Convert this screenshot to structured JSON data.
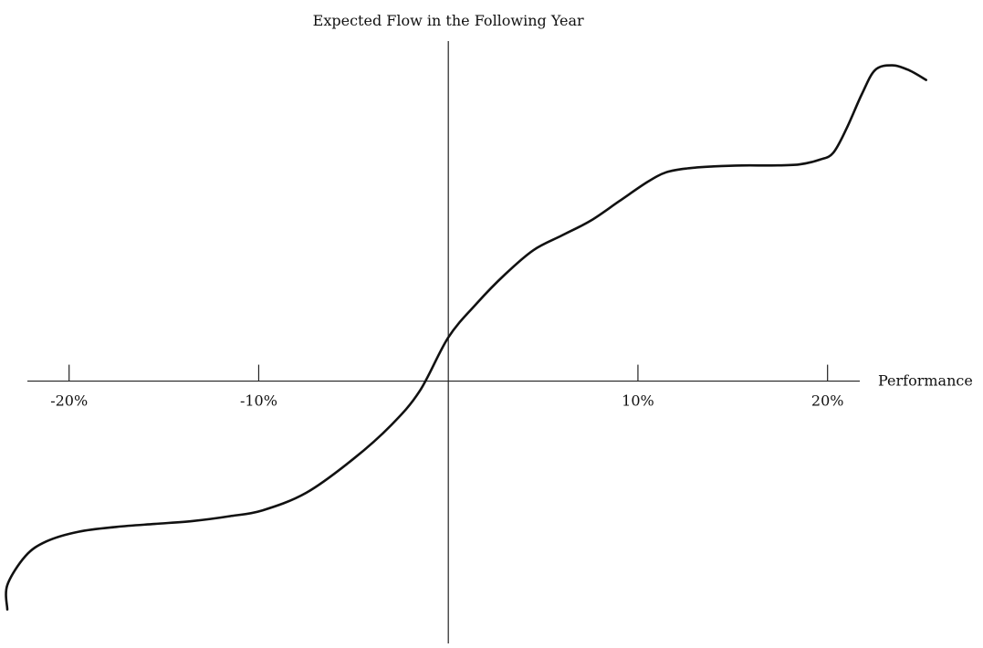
{
  "chart_data": {
    "type": "line",
    "title": "",
    "xlabel": "Performance",
    "ylabel": "Expected Flow in the Following Year",
    "x_tick_labels": [
      {
        "value": -20,
        "label": "-20%"
      },
      {
        "value": -10,
        "label": "-10%"
      },
      {
        "value": 10,
        "label": "10%"
      },
      {
        "value": 20,
        "label": "20%"
      }
    ],
    "xlim": [
      -22.2,
      21.7
    ],
    "ylim": [
      -27,
      35
    ],
    "grid": false,
    "series": [
      {
        "values_x": [
          -24.2,
          -23.5,
          -22.3,
          -21.2,
          -19.5,
          -17.5,
          -15.5,
          -13.5,
          -11.5,
          -9.8,
          -7.5,
          -5,
          -3,
          -1.5,
          0,
          1.5,
          3,
          4.5,
          6,
          7.5,
          9,
          10.5,
          11.5,
          12.6,
          14,
          15.5,
          17,
          18.5,
          19.6,
          20.3,
          21,
          21.8,
          22.5,
          23.4,
          24.3,
          25.2
        ],
        "values_y": [
          -23.5,
          -21,
          -18,
          -16.5,
          -15.5,
          -15,
          -14.7,
          -14.4,
          -13.9,
          -13.3,
          -11.5,
          -8,
          -4.5,
          -1,
          4.5,
          8,
          11,
          13.5,
          15,
          16.5,
          18.5,
          20.5,
          21.5,
          21.9,
          22.1,
          22.2,
          22.2,
          22.3,
          22.8,
          23.5,
          26,
          29.5,
          32,
          32.5,
          32,
          31
        ]
      }
    ]
  }
}
